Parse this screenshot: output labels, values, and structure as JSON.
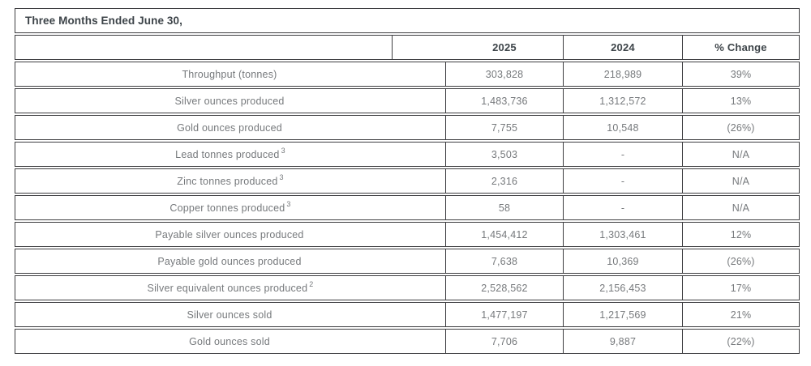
{
  "table": {
    "title": "Three Months Ended June 30,",
    "columns": [
      "2025",
      "2024",
      "% Change"
    ],
    "rows": [
      {
        "label": "Throughput (tonnes)",
        "sup": "",
        "v2025": "303,828",
        "v2024": "218,989",
        "change": "39%"
      },
      {
        "label": "Silver ounces produced",
        "sup": "",
        "v2025": "1,483,736",
        "v2024": "1,312,572",
        "change": "13%"
      },
      {
        "label": "Gold ounces produced",
        "sup": "",
        "v2025": "7,755",
        "v2024": "10,548",
        "change": "(26%)"
      },
      {
        "label": "Lead tonnes produced",
        "sup": "3",
        "v2025": "3,503",
        "v2024": "-",
        "change": "N/A"
      },
      {
        "label": "Zinc tonnes produced",
        "sup": "3",
        "v2025": "2,316",
        "v2024": "-",
        "change": "N/A"
      },
      {
        "label": "Copper tonnes produced",
        "sup": "3",
        "v2025": "58",
        "v2024": "-",
        "change": "N/A"
      },
      {
        "label": "Payable silver ounces produced",
        "sup": "",
        "v2025": "1,454,412",
        "v2024": "1,303,461",
        "change": "12%"
      },
      {
        "label": "Payable gold ounces produced",
        "sup": "",
        "v2025": "7,638",
        "v2024": "10,369",
        "change": "(26%)"
      },
      {
        "label": "Silver equivalent ounces produced",
        "sup": "2",
        "v2025": "2,528,562",
        "v2024": "2,156,453",
        "change": "17%"
      },
      {
        "label": "Silver ounces sold",
        "sup": "",
        "v2025": "1,477,197",
        "v2024": "1,217,569",
        "change": "21%"
      },
      {
        "label": "Gold ounces sold",
        "sup": "",
        "v2025": "7,706",
        "v2024": "9,887",
        "change": "(22%)"
      }
    ],
    "colors": {
      "border": "#3e3e41",
      "data_text": "#76797c",
      "heading_text": "#3d4449",
      "background": "#ffffff"
    }
  }
}
